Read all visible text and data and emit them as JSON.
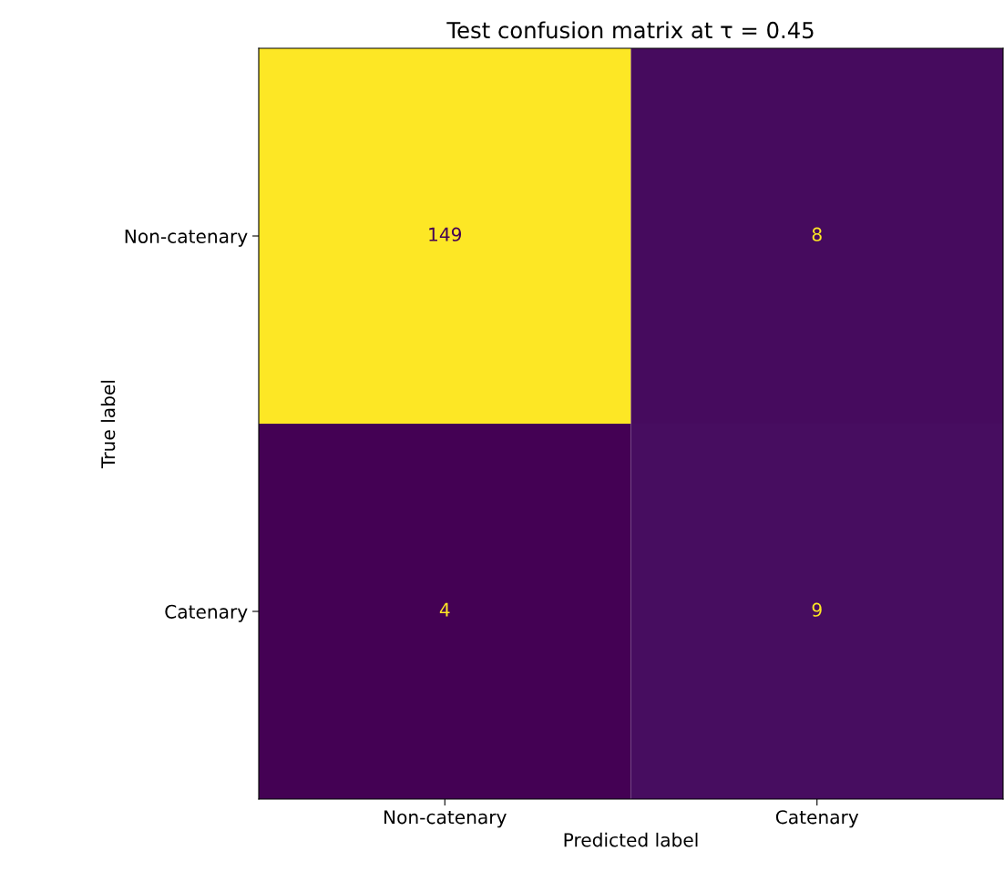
{
  "chart_data": {
    "type": "heatmap",
    "title": "Test confusion matrix at τ = 0.45",
    "xlabel": "Predicted label",
    "ylabel": "True label",
    "categories": [
      "Non-catenary",
      "Catenary"
    ],
    "y_categories": [
      "Non-catenary",
      "Catenary"
    ],
    "cells": [
      [
        149,
        8
      ],
      [
        4,
        9
      ]
    ],
    "data_labels": true,
    "grid": false
  }
}
